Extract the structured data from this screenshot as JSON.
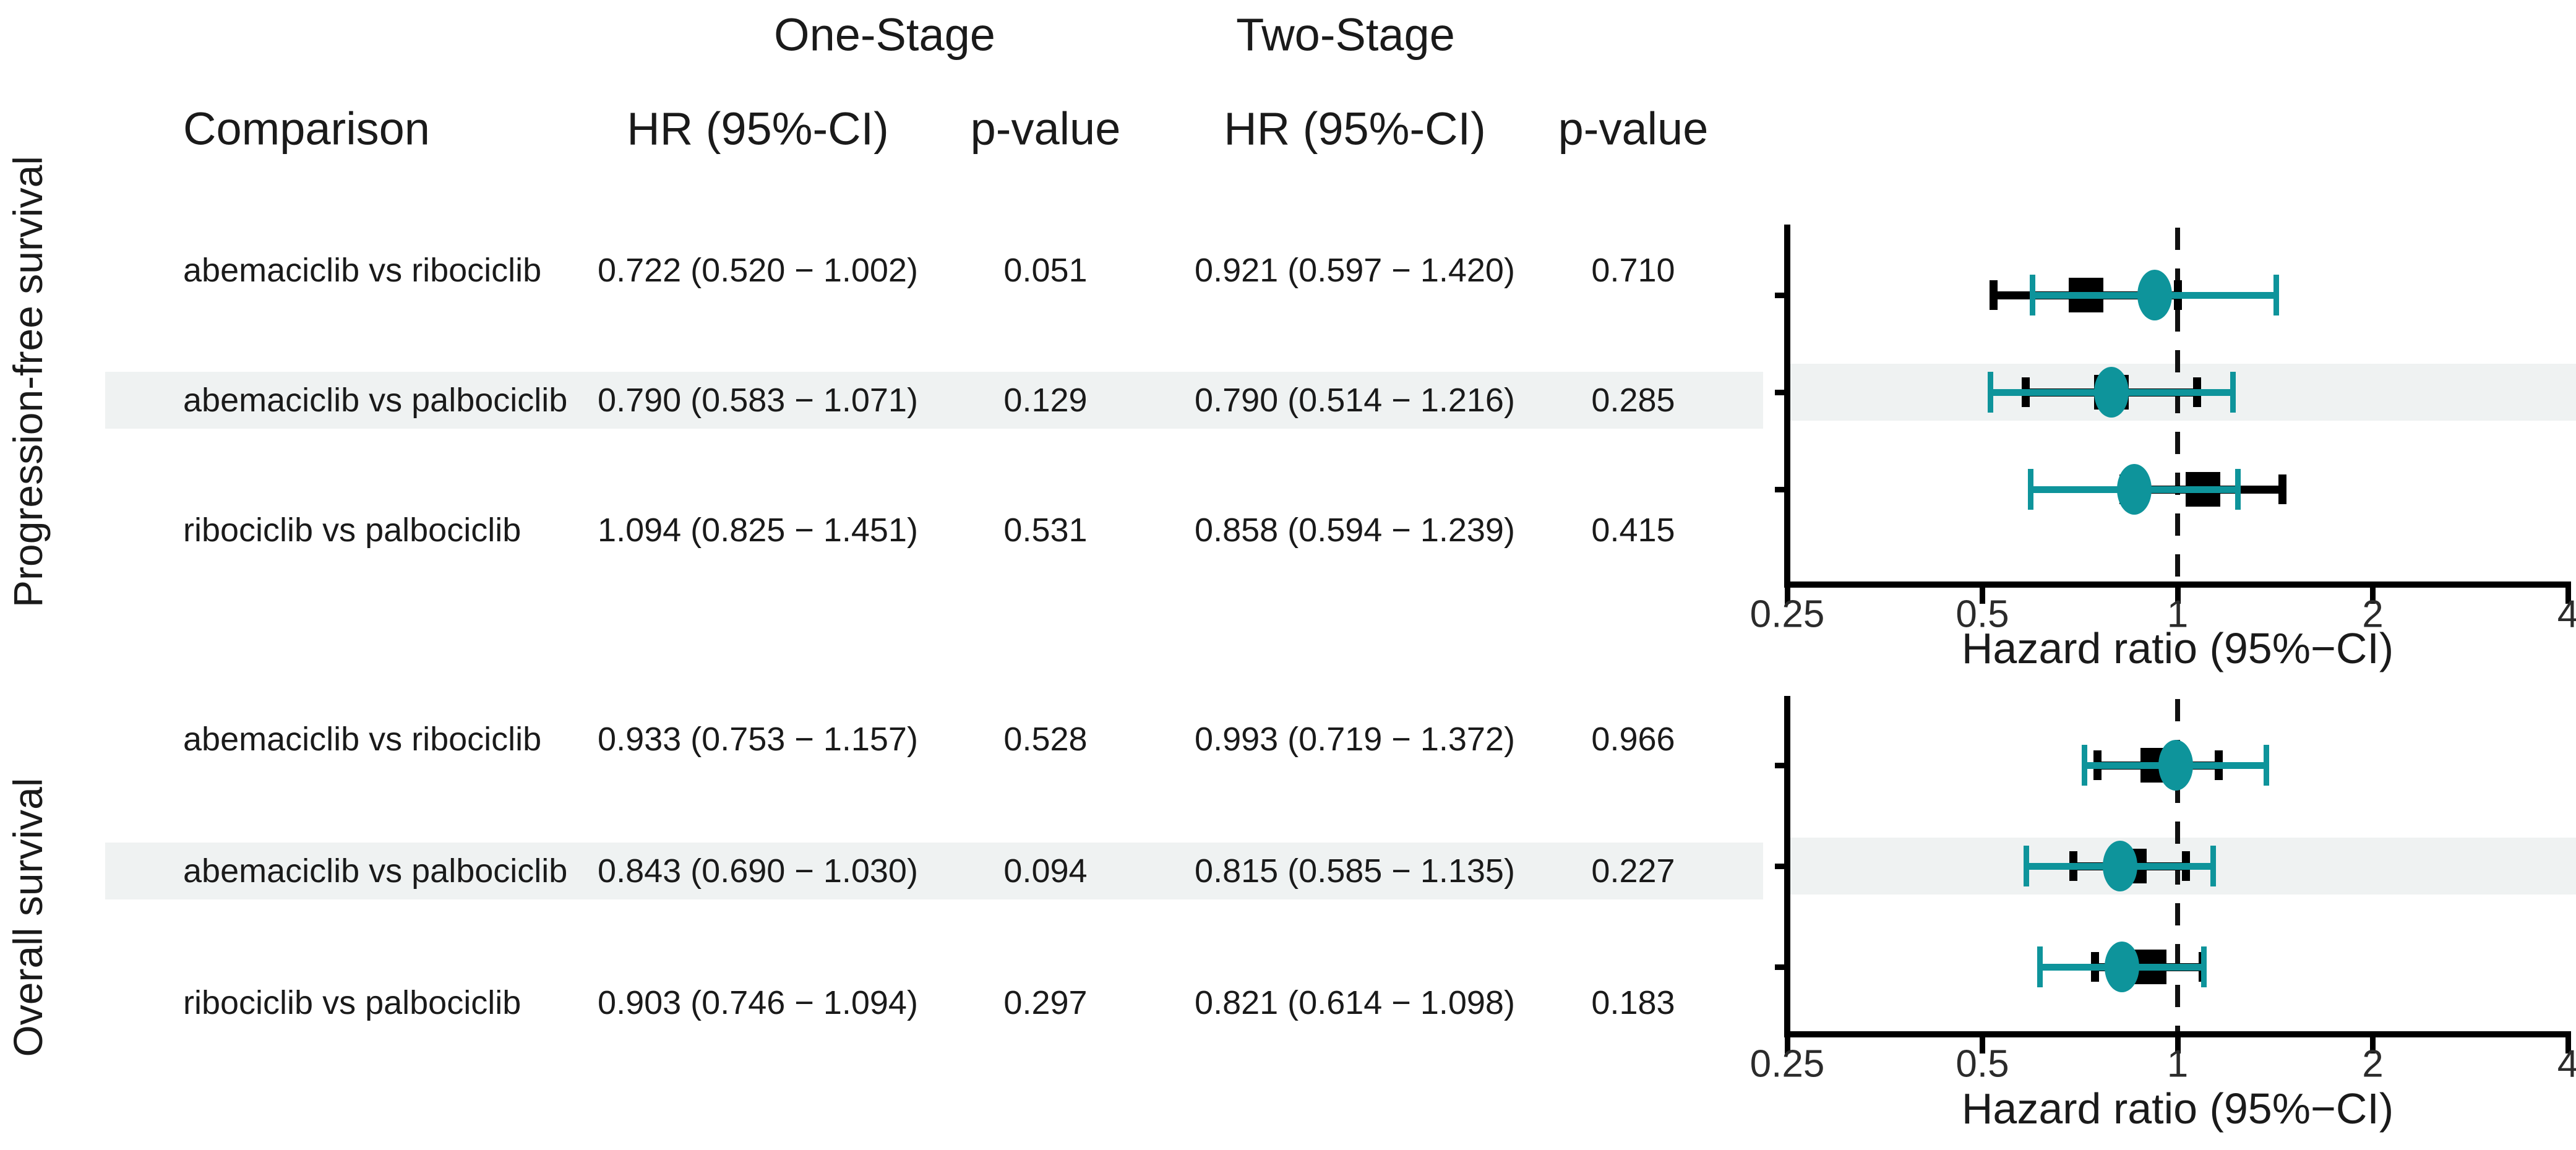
{
  "header": {
    "group1": "One-Stage",
    "group2": "Two-Stage",
    "comparison": "Comparison",
    "hr_ci": "HR (95%-CI)",
    "p_value": "p-value"
  },
  "axis": {
    "tick_labels": [
      "0.25",
      "0.5",
      "1",
      "2",
      "4"
    ],
    "tick_values": [
      0.25,
      0.5,
      1,
      2,
      4
    ],
    "label": "Hazard ratio (95%−CI)",
    "xlim": [
      0.25,
      4
    ],
    "scale": "log",
    "ref_line": 1
  },
  "colors": {
    "one_stage": "#000000",
    "two_stage": "#0e949b",
    "highlight_band": "#eff2f2",
    "text": "#1a1a1a"
  },
  "chart_data": [
    {
      "type": "forest",
      "section_label": "Progression-free survival",
      "xlabel": "Hazard ratio (95%−CI)",
      "x_ticks": [
        0.25,
        0.5,
        1,
        2,
        4
      ],
      "xlim": [
        0.25,
        4
      ],
      "ref_line": 1,
      "series": [
        "One-Stage",
        "Two-Stage"
      ],
      "rows": [
        {
          "comparison": "abemaciclib vs ribociclib",
          "one_stage": {
            "hr": 0.722,
            "ci_low": 0.52,
            "ci_high": 1.002,
            "hr_ci_text": "0.722 (0.520 − 1.002)",
            "p_value": "0.051"
          },
          "two_stage": {
            "hr": 0.921,
            "ci_low": 0.597,
            "ci_high": 1.42,
            "hr_ci_text": "0.921 (0.597 − 1.420)",
            "p_value": "0.710"
          },
          "highlighted": false
        },
        {
          "comparison": "abemaciclib vs palbociclib",
          "one_stage": {
            "hr": 0.79,
            "ci_low": 0.583,
            "ci_high": 1.071,
            "hr_ci_text": "0.790 (0.583 − 1.071)",
            "p_value": "0.129"
          },
          "two_stage": {
            "hr": 0.79,
            "ci_low": 0.514,
            "ci_high": 1.216,
            "hr_ci_text": "0.790 (0.514 − 1.216)",
            "p_value": "0.285"
          },
          "highlighted": true
        },
        {
          "comparison": "ribociclib vs palbociclib",
          "one_stage": {
            "hr": 1.094,
            "ci_low": 0.825,
            "ci_high": 1.451,
            "hr_ci_text": "1.094 (0.825 − 1.451)",
            "p_value": "0.531"
          },
          "two_stage": {
            "hr": 0.858,
            "ci_low": 0.594,
            "ci_high": 1.239,
            "hr_ci_text": "0.858 (0.594 − 1.239)",
            "p_value": "0.415"
          },
          "highlighted": false
        }
      ]
    },
    {
      "type": "forest",
      "section_label": "Overall survival",
      "xlabel": "Hazard ratio (95%−CI)",
      "x_ticks": [
        0.25,
        0.5,
        1,
        2,
        4
      ],
      "xlim": [
        0.25,
        4
      ],
      "ref_line": 1,
      "series": [
        "One-Stage",
        "Two-Stage"
      ],
      "rows": [
        {
          "comparison": "abemaciclib vs ribociclib",
          "one_stage": {
            "hr": 0.933,
            "ci_low": 0.753,
            "ci_high": 1.157,
            "hr_ci_text": "0.933 (0.753 − 1.157)",
            "p_value": "0.528"
          },
          "two_stage": {
            "hr": 0.993,
            "ci_low": 0.719,
            "ci_high": 1.372,
            "hr_ci_text": "0.993 (0.719 − 1.372)",
            "p_value": "0.966"
          },
          "highlighted": false
        },
        {
          "comparison": "abemaciclib vs palbociclib",
          "one_stage": {
            "hr": 0.843,
            "ci_low": 0.69,
            "ci_high": 1.03,
            "hr_ci_text": "0.843 (0.690 − 1.030)",
            "p_value": "0.094"
          },
          "two_stage": {
            "hr": 0.815,
            "ci_low": 0.585,
            "ci_high": 1.135,
            "hr_ci_text": "0.815 (0.585 − 1.135)",
            "p_value": "0.227"
          },
          "highlighted": true
        },
        {
          "comparison": "ribociclib vs palbociclib",
          "one_stage": {
            "hr": 0.903,
            "ci_low": 0.746,
            "ci_high": 1.094,
            "hr_ci_text": "0.903 (0.746 − 1.094)",
            "p_value": "0.297"
          },
          "two_stage": {
            "hr": 0.821,
            "ci_low": 0.614,
            "ci_high": 1.098,
            "hr_ci_text": "0.821 (0.614 − 1.098)",
            "p_value": "0.183"
          },
          "highlighted": false
        }
      ]
    }
  ]
}
